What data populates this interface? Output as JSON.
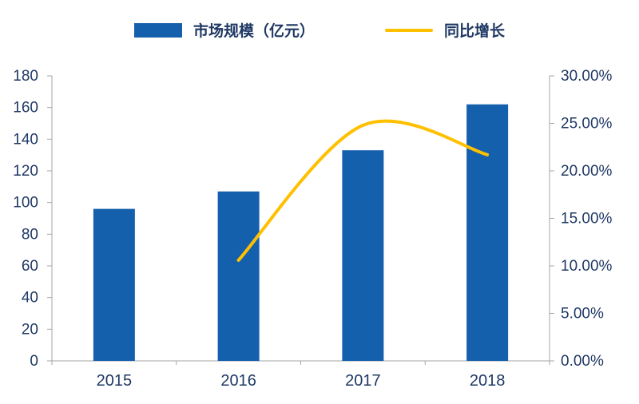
{
  "chart_data": {
    "type": "bar",
    "subtype": "combo-bar-line",
    "title": "",
    "categories": [
      "2015",
      "2016",
      "2017",
      "2018"
    ],
    "series": [
      {
        "name": "市场规模（亿元）",
        "type": "bar",
        "axis": "left",
        "color": "#1560AD",
        "values": [
          96,
          107,
          133,
          162
        ]
      },
      {
        "name": "同比增长",
        "type": "line",
        "axis": "right",
        "color": "#FFC000",
        "values": [
          null,
          10.6,
          24.8,
          21.7
        ]
      }
    ],
    "left_axis": {
      "min": 0,
      "max": 180,
      "step": 20,
      "tick_labels": [
        "0",
        "20",
        "40",
        "60",
        "80",
        "100",
        "120",
        "140",
        "160",
        "180"
      ]
    },
    "right_axis": {
      "min": 0,
      "max": 30,
      "step": 5,
      "tick_labels": [
        "0.00%",
        "5.00%",
        "10.00%",
        "15.00%",
        "20.00%",
        "25.00%",
        "30.00%"
      ]
    },
    "legend_position": "top",
    "grid": false,
    "text_color": "#1F3864",
    "axis_color": "#A6A6A6"
  }
}
